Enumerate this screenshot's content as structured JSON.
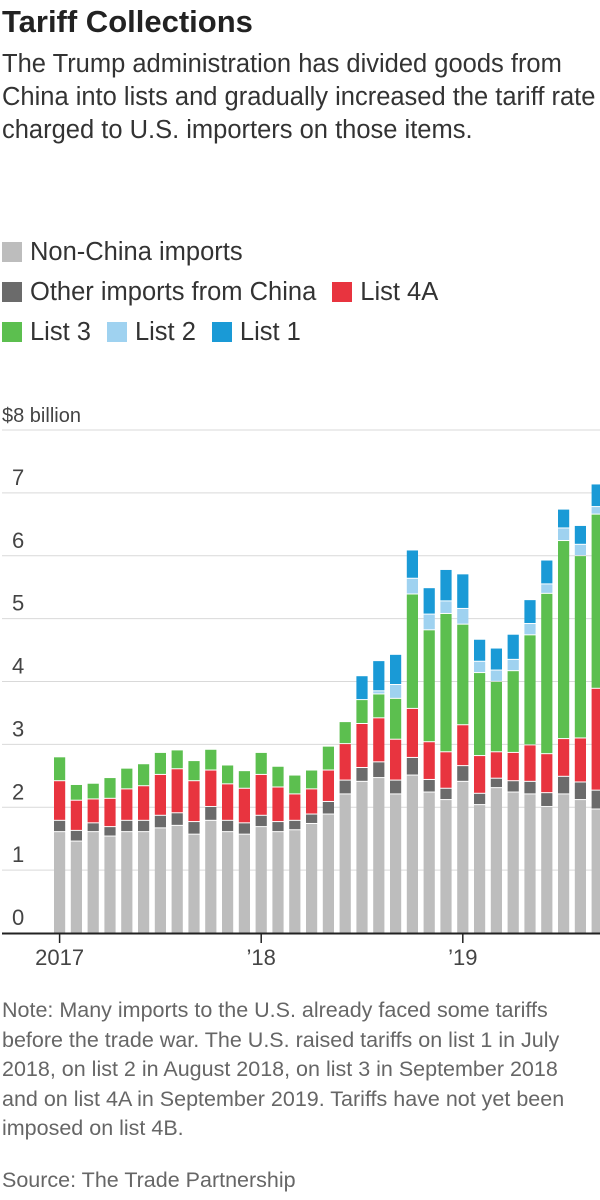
{
  "chart_data": {
    "type": "bar",
    "stacked": true,
    "title": "Tariff Collections",
    "subtitle": "The Trump administration has divided goods from China into lists and gradually increased the tariff rate charged to U.S. importers on those items.",
    "ylabel": "",
    "y_top_label": "$8 billion",
    "ylim": [
      0,
      8
    ],
    "yticks": [
      "0",
      "1",
      "2",
      "3",
      "4",
      "5",
      "6",
      "7"
    ],
    "x_tick_labels": [
      {
        "label": "2017",
        "index": 0
      },
      {
        "label": "’18",
        "index": 12
      },
      {
        "label": "’19",
        "index": 24
      }
    ],
    "categories": [
      "Jan 2017",
      "Feb 2017",
      "Mar 2017",
      "Apr 2017",
      "May 2017",
      "Jun 2017",
      "Jul 2017",
      "Aug 2017",
      "Sep 2017",
      "Oct 2017",
      "Nov 2017",
      "Dec 2017",
      "Jan 2018",
      "Feb 2018",
      "Mar 2018",
      "Apr 2018",
      "May 2018",
      "Jun 2018",
      "Jul 2018",
      "Aug 2018",
      "Sep 2018",
      "Oct 2018",
      "Nov 2018",
      "Dec 2018",
      "Jan 2019",
      "Feb 2019",
      "Mar 2019",
      "Apr 2019",
      "May 2019",
      "Jun 2019",
      "Jul 2019",
      "Aug 2019",
      "Sep 2019"
    ],
    "legend": [
      {
        "name": "Non-China imports",
        "color": "#bdbdbd"
      },
      {
        "name": "Other imports from China",
        "color": "#6b6b6b"
      },
      {
        "name": "List 4A",
        "color": "#e8343f"
      },
      {
        "name": "List 3",
        "color": "#5cbf4f"
      },
      {
        "name": "List 2",
        "color": "#9fd2f0"
      },
      {
        "name": "List 1",
        "color": "#1a9ad6"
      }
    ],
    "series": [
      {
        "name": "Non-China imports",
        "color": "#bdbdbd",
        "values": [
          1.62,
          1.47,
          1.62,
          1.55,
          1.62,
          1.62,
          1.68,
          1.72,
          1.58,
          1.8,
          1.62,
          1.58,
          1.7,
          1.62,
          1.65,
          1.75,
          1.9,
          2.22,
          2.42,
          2.48,
          2.22,
          2.52,
          2.25,
          2.13,
          2.42,
          2.05,
          2.32,
          2.25,
          2.22,
          2.02,
          2.22,
          2.13,
          1.98
        ]
      },
      {
        "name": "Other imports from China",
        "color": "#6b6b6b",
        "values": [
          0.18,
          0.17,
          0.14,
          0.15,
          0.18,
          0.18,
          0.2,
          0.2,
          0.2,
          0.22,
          0.18,
          0.18,
          0.18,
          0.16,
          0.15,
          0.15,
          0.2,
          0.22,
          0.22,
          0.25,
          0.22,
          0.28,
          0.2,
          0.18,
          0.25,
          0.18,
          0.15,
          0.18,
          0.2,
          0.22,
          0.28,
          0.28,
          0.3
        ]
      },
      {
        "name": "List 4A",
        "color": "#e8343f",
        "values": [
          0.63,
          0.48,
          0.38,
          0.45,
          0.5,
          0.55,
          0.65,
          0.7,
          0.65,
          0.58,
          0.58,
          0.55,
          0.65,
          0.55,
          0.42,
          0.4,
          0.5,
          0.58,
          0.7,
          0.7,
          0.65,
          0.78,
          0.6,
          0.58,
          0.65,
          0.6,
          0.42,
          0.45,
          0.58,
          0.62,
          0.6,
          0.7,
          1.62
        ]
      },
      {
        "name": "List 3",
        "color": "#5cbf4f",
        "values": [
          0.38,
          0.25,
          0.25,
          0.33,
          0.33,
          0.35,
          0.35,
          0.3,
          0.32,
          0.33,
          0.3,
          0.28,
          0.35,
          0.33,
          0.3,
          0.3,
          0.38,
          0.35,
          0.38,
          0.38,
          0.65,
          1.82,
          1.78,
          2.2,
          1.6,
          1.32,
          1.12,
          1.3,
          1.75,
          2.55,
          3.15,
          2.9,
          2.77
        ]
      },
      {
        "name": "List 2",
        "color": "#9fd2f0",
        "values": [
          0,
          0,
          0,
          0,
          0,
          0,
          0,
          0,
          0,
          0,
          0,
          0,
          0,
          0,
          0,
          0,
          0,
          0,
          0,
          0.05,
          0.22,
          0.25,
          0.25,
          0.2,
          0.25,
          0.18,
          0.18,
          0.18,
          0.18,
          0.15,
          0.2,
          0.18,
          0.12
        ]
      },
      {
        "name": "List 1",
        "color": "#1a9ad6",
        "values": [
          0,
          0,
          0,
          0,
          0,
          0,
          0,
          0,
          0,
          0,
          0,
          0,
          0,
          0,
          0,
          0,
          0,
          0,
          0.38,
          0.48,
          0.48,
          0.45,
          0.42,
          0.5,
          0.55,
          0.35,
          0.35,
          0.4,
          0.38,
          0.38,
          0.3,
          0.3,
          0.36
        ]
      }
    ],
    "grid": true,
    "legend_position": "top"
  },
  "note": "Note: Many imports to the U.S. already faced some tariffs before the trade war. The U.S. raised tariffs on list 1 in July 2018, on list 2 in August 2018, on list 3 in September 2018 and on list 4A in September 2019. Tariffs have not yet been imposed on list 4B.",
  "source": "Source: The Trade Partnership"
}
